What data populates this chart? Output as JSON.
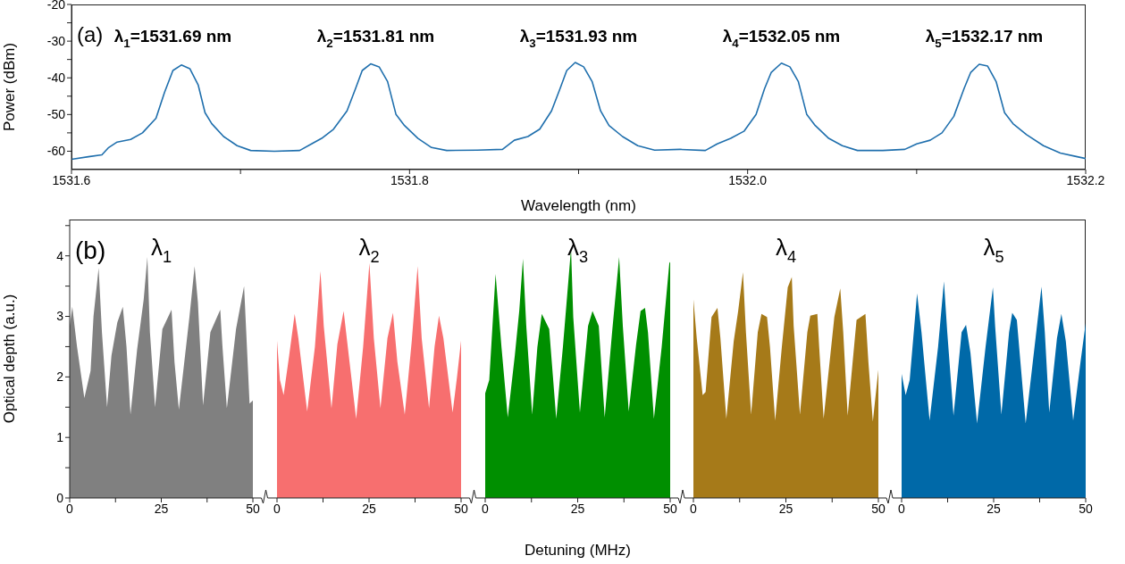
{
  "chart_data": [
    {
      "type": "line",
      "xlabel": "Wavelength (nm)",
      "ylabel": "Power (dBm)",
      "color": "#1f6fad",
      "xlim": [
        1531.6,
        1532.2
      ],
      "xticks": [
        1531.6,
        {
          "value": 1531.7,
          "label": null
        },
        1531.8,
        {
          "value": 1531.9,
          "label": null
        },
        {
          "value": 1532.0,
          "label": "1532.0"
        },
        {
          "value": 1532.1,
          "label": null
        },
        1532.2
      ],
      "ylim": [
        -65,
        -20
      ],
      "yticks": [
        -60,
        {
          "value": -55,
          "label": null
        },
        -50,
        {
          "value": -45,
          "label": null
        },
        -40,
        {
          "value": -35,
          "label": null
        },
        -30,
        {
          "value": -25,
          "label": null
        },
        -20
      ],
      "annotations": [
        "(a)",
        "λ$_{1}$=1531.69 nm",
        "λ$_{2}$=1531.81 nm",
        "λ$_{3}$=1531.93 nm",
        "λ$_{4}$=1532.05 nm",
        "λ$_{5}$=1532.17 nm"
      ],
      "x": [
        1531.6,
        1531.61,
        1531.618,
        1531.622,
        1531.627,
        1531.635,
        1531.642,
        1531.65,
        1531.655,
        1531.66,
        1531.665,
        1531.67,
        1531.675,
        1531.679,
        1531.683,
        1531.69,
        1531.698,
        1531.706,
        1531.72,
        1531.735,
        1531.742,
        1531.748,
        1531.755,
        1531.763,
        1531.768,
        1531.772,
        1531.777,
        1531.782,
        1531.787,
        1531.792,
        1531.797,
        1531.805,
        1531.813,
        1531.822,
        1531.84,
        1531.855,
        1531.862,
        1531.87,
        1531.877,
        1531.884,
        1531.889,
        1531.893,
        1531.898,
        1531.903,
        1531.908,
        1531.913,
        1531.918,
        1531.926,
        1531.935,
        1531.945,
        1531.96,
        1531.975,
        1531.982,
        1531.99,
        1531.998,
        1532.005,
        1532.01,
        1532.014,
        1532.02,
        1532.025,
        1532.03,
        1532.035,
        1532.04,
        1532.048,
        1532.056,
        1532.065,
        1532.08,
        1532.093,
        1532.1,
        1532.108,
        1532.115,
        1532.122,
        1532.128,
        1532.132,
        1532.137,
        1532.142,
        1532.147,
        1532.152,
        1532.157,
        1532.165,
        1532.175,
        1532.185,
        1532.195,
        1532.2
      ],
      "values": [
        -62.2,
        -61.5,
        -61,
        -59,
        -57.5,
        -56.8,
        -55,
        -51,
        -44,
        -38,
        -36.5,
        -37.5,
        -42,
        -49.5,
        -52.5,
        -56,
        -58.5,
        -59.8,
        -60,
        -59.8,
        -58,
        -56.5,
        -54,
        -49,
        -43,
        -38,
        -36.2,
        -37,
        -41,
        -50,
        -53,
        -56.5,
        -59,
        -59.8,
        -59.7,
        -59.5,
        -57,
        -56,
        -54,
        -49,
        -43,
        -38,
        -35.8,
        -37,
        -41,
        -49,
        -53,
        -56,
        -58.5,
        -59.7,
        -59.5,
        -59.8,
        -58,
        -56.5,
        -54.5,
        -50,
        -43,
        -38.5,
        -36,
        -37,
        -41,
        -50,
        -53,
        -56.5,
        -58.5,
        -59.8,
        -59.8,
        -59.5,
        -58,
        -57,
        -55,
        -50.5,
        -43,
        -38.5,
        -36.3,
        -36.8,
        -41,
        -49.5,
        -52.5,
        -55.5,
        -58.5,
        -60.5,
        -61.5,
        -62
      ]
    },
    {
      "type": "area",
      "ylabel": "Optical depth (a.u.)",
      "color": "#808080",
      "annotations": [
        "(b)",
        "λ$_{1}$"
      ],
      "xlim": [
        0,
        50
      ],
      "xticks": [
        0,
        {
          "value": 12.5,
          "label": null
        },
        25,
        {
          "value": 37.5,
          "label": null
        },
        50
      ],
      "ylim": [
        0,
        4.6
      ],
      "yticks": [
        0,
        {
          "value": 0.5,
          "label": null
        },
        1,
        {
          "value": 1.5,
          "label": null
        },
        2,
        {
          "value": 2.5,
          "label": null
        },
        3,
        {
          "value": 3.5,
          "label": null
        },
        4,
        {
          "value": 4.5,
          "label": null
        }
      ],
      "x": [
        0,
        0.7,
        2,
        4,
        5.7,
        6.5,
        7.9,
        8.8,
        10.2,
        11.4,
        13,
        14.5,
        15.5,
        16.6,
        18.4,
        20.2,
        21.2,
        21.9,
        23.3,
        25.3,
        27.8,
        28.6,
        29.8,
        32.7,
        34.1,
        35,
        36.4,
        38.4,
        41.1,
        41.7,
        42.9,
        45.4,
        47.6,
        49.1,
        50
      ],
      "values": [
        2.84,
        3.16,
        2.5,
        1.65,
        2.1,
        3.0,
        3.8,
        2.74,
        1.5,
        2.35,
        2.9,
        3.16,
        2.5,
        1.38,
        2.45,
        3.28,
        3.98,
        2.74,
        1.5,
        2.79,
        3.11,
        2.25,
        1.46,
        3.0,
        3.83,
        3.23,
        1.53,
        2.74,
        3.11,
        2.5,
        1.48,
        2.79,
        3.5,
        1.56,
        1.61
      ]
    },
    {
      "type": "area",
      "color": "#f76f6f",
      "annotations": [
        "λ$_{2}$"
      ],
      "tick_labels": "x",
      "xlim": [
        0,
        50
      ],
      "xticks": [
        0,
        {
          "value": 12.5,
          "label": null
        },
        25,
        {
          "value": 37.5,
          "label": null
        },
        50
      ],
      "ylim": [
        0,
        4.6
      ],
      "x": [
        0,
        0.8,
        1.8,
        3.3,
        4.8,
        5.8,
        8.2,
        10.3,
        11.8,
        12.7,
        14.8,
        16.4,
        18.1,
        19.7,
        21.5,
        23.4,
        25.1,
        26.3,
        28.1,
        30,
        31.5,
        32.7,
        34.7,
        36.6,
        38.2,
        39.3,
        41.3,
        42.8,
        44,
        45.2,
        47.7,
        48.9,
        50
      ],
      "values": [
        2.6,
        1.95,
        1.7,
        2.35,
        3.04,
        2.64,
        1.43,
        2.5,
        3.75,
        2.84,
        1.48,
        2.54,
        3.09,
        2.25,
        1.31,
        2.5,
        3.88,
        2.64,
        1.48,
        2.64,
        3.06,
        2.25,
        1.38,
        2.59,
        3.83,
        2.64,
        1.48,
        2.5,
        3.01,
        2.64,
        1.41,
        2.0,
        2.6
      ]
    },
    {
      "type": "area",
      "color": "#008f00",
      "xlabel": "Detuning (MHz)",
      "annotations": [
        "λ$_{3}$"
      ],
      "tick_labels": "x",
      "xlim": [
        0,
        50
      ],
      "xticks": [
        0,
        {
          "value": 12.5,
          "label": null
        },
        25,
        {
          "value": 37.5,
          "label": null
        },
        50
      ],
      "ylim": [
        0,
        4.6
      ],
      "x": [
        0,
        1.1,
        2.8,
        4.4,
        6.1,
        8,
        9.2,
        10.2,
        11.1,
        12.7,
        14.1,
        15.3,
        17.3,
        19.2,
        21,
        23.2,
        23.8,
        25.6,
        27.8,
        29,
        30.7,
        32.3,
        34.3,
        36.2,
        37.2,
        38.8,
        40.8,
        42,
        43.2,
        44,
        45.6,
        47.7,
        49.8,
        50
      ],
      "values": [
        1.73,
        1.95,
        3.7,
        2.49,
        1.33,
        2.35,
        3.09,
        3.95,
        2.84,
        1.38,
        2.49,
        3.04,
        2.79,
        1.31,
        2.49,
        4.12,
        2.99,
        1.41,
        2.84,
        3.09,
        2.84,
        1.33,
        2.74,
        3.98,
        2.84,
        1.43,
        2.54,
        3.09,
        3.14,
        2.74,
        1.31,
        2.49,
        3.9,
        3.88
      ]
    },
    {
      "type": "area",
      "color": "#a67a19",
      "annotations": [
        "λ$_{4}$"
      ],
      "tick_labels": "x",
      "xlim": [
        0,
        50
      ],
      "xticks": [
        0,
        {
          "value": 12.5,
          "label": null
        },
        25,
        {
          "value": 37.5,
          "label": null
        },
        50
      ],
      "ylim": [
        0,
        4.6
      ],
      "x": [
        0,
        0.9,
        2.5,
        3.3,
        4.9,
        6.5,
        7.3,
        8.9,
        10.9,
        12.1,
        13.4,
        14.2,
        15.6,
        17.4,
        18.4,
        19.9,
        20.7,
        22.1,
        23.9,
        25.5,
        26.6,
        27.1,
        28.8,
        30.8,
        31.6,
        33.5,
        34,
        35.2,
        38.1,
        39.7,
        40.5,
        41.7,
        44.1,
        46.5,
        47.3,
        48.5,
        50
      ],
      "values": [
        3.28,
        2.64,
        1.7,
        1.75,
        2.99,
        3.14,
        2.64,
        1.31,
        2.59,
        3.09,
        3.73,
        2.74,
        1.38,
        2.74,
        3.04,
        2.99,
        2.49,
        1.28,
        2.49,
        3.48,
        3.65,
        2.84,
        1.38,
        2.74,
        3.01,
        3.04,
        2.49,
        1.31,
        2.99,
        3.46,
        2.74,
        1.36,
        2.94,
        3.04,
        2.25,
        1.26,
        2.12
      ]
    },
    {
      "type": "area",
      "color": "#0069a8",
      "annotations": [
        "λ$_{5}$"
      ],
      "tick_labels": "x",
      "xlim": [
        0,
        50
      ],
      "xticks": [
        0,
        {
          "value": 12.5,
          "label": null
        },
        25,
        {
          "value": 37.5,
          "label": null
        },
        50
      ],
      "ylim": [
        0,
        4.6
      ],
      "x": [
        0,
        1.1,
        2.2,
        4.2,
        5.4,
        7.6,
        9.9,
        11.5,
        12.4,
        14.1,
        16.3,
        17.5,
        18.7,
        20.5,
        22.8,
        24.8,
        25.4,
        27.1,
        29.2,
        30.05,
        31.3,
        33.7,
        36.1,
        38,
        38.9,
        40.1,
        42.2,
        43.4,
        44.6,
        46.6,
        48.6,
        50
      ],
      "values": [
        2.05,
        1.7,
        1.95,
        3.38,
        2.74,
        1.28,
        2.49,
        3.58,
        2.74,
        1.36,
        2.74,
        2.86,
        2.4,
        1.23,
        2.49,
        3.48,
        2.84,
        1.38,
        2.74,
        3.06,
        2.94,
        1.23,
        2.49,
        3.49,
        2.74,
        1.41,
        2.64,
        3.04,
        2.59,
        1.28,
        2.25,
        2.89
      ]
    }
  ]
}
